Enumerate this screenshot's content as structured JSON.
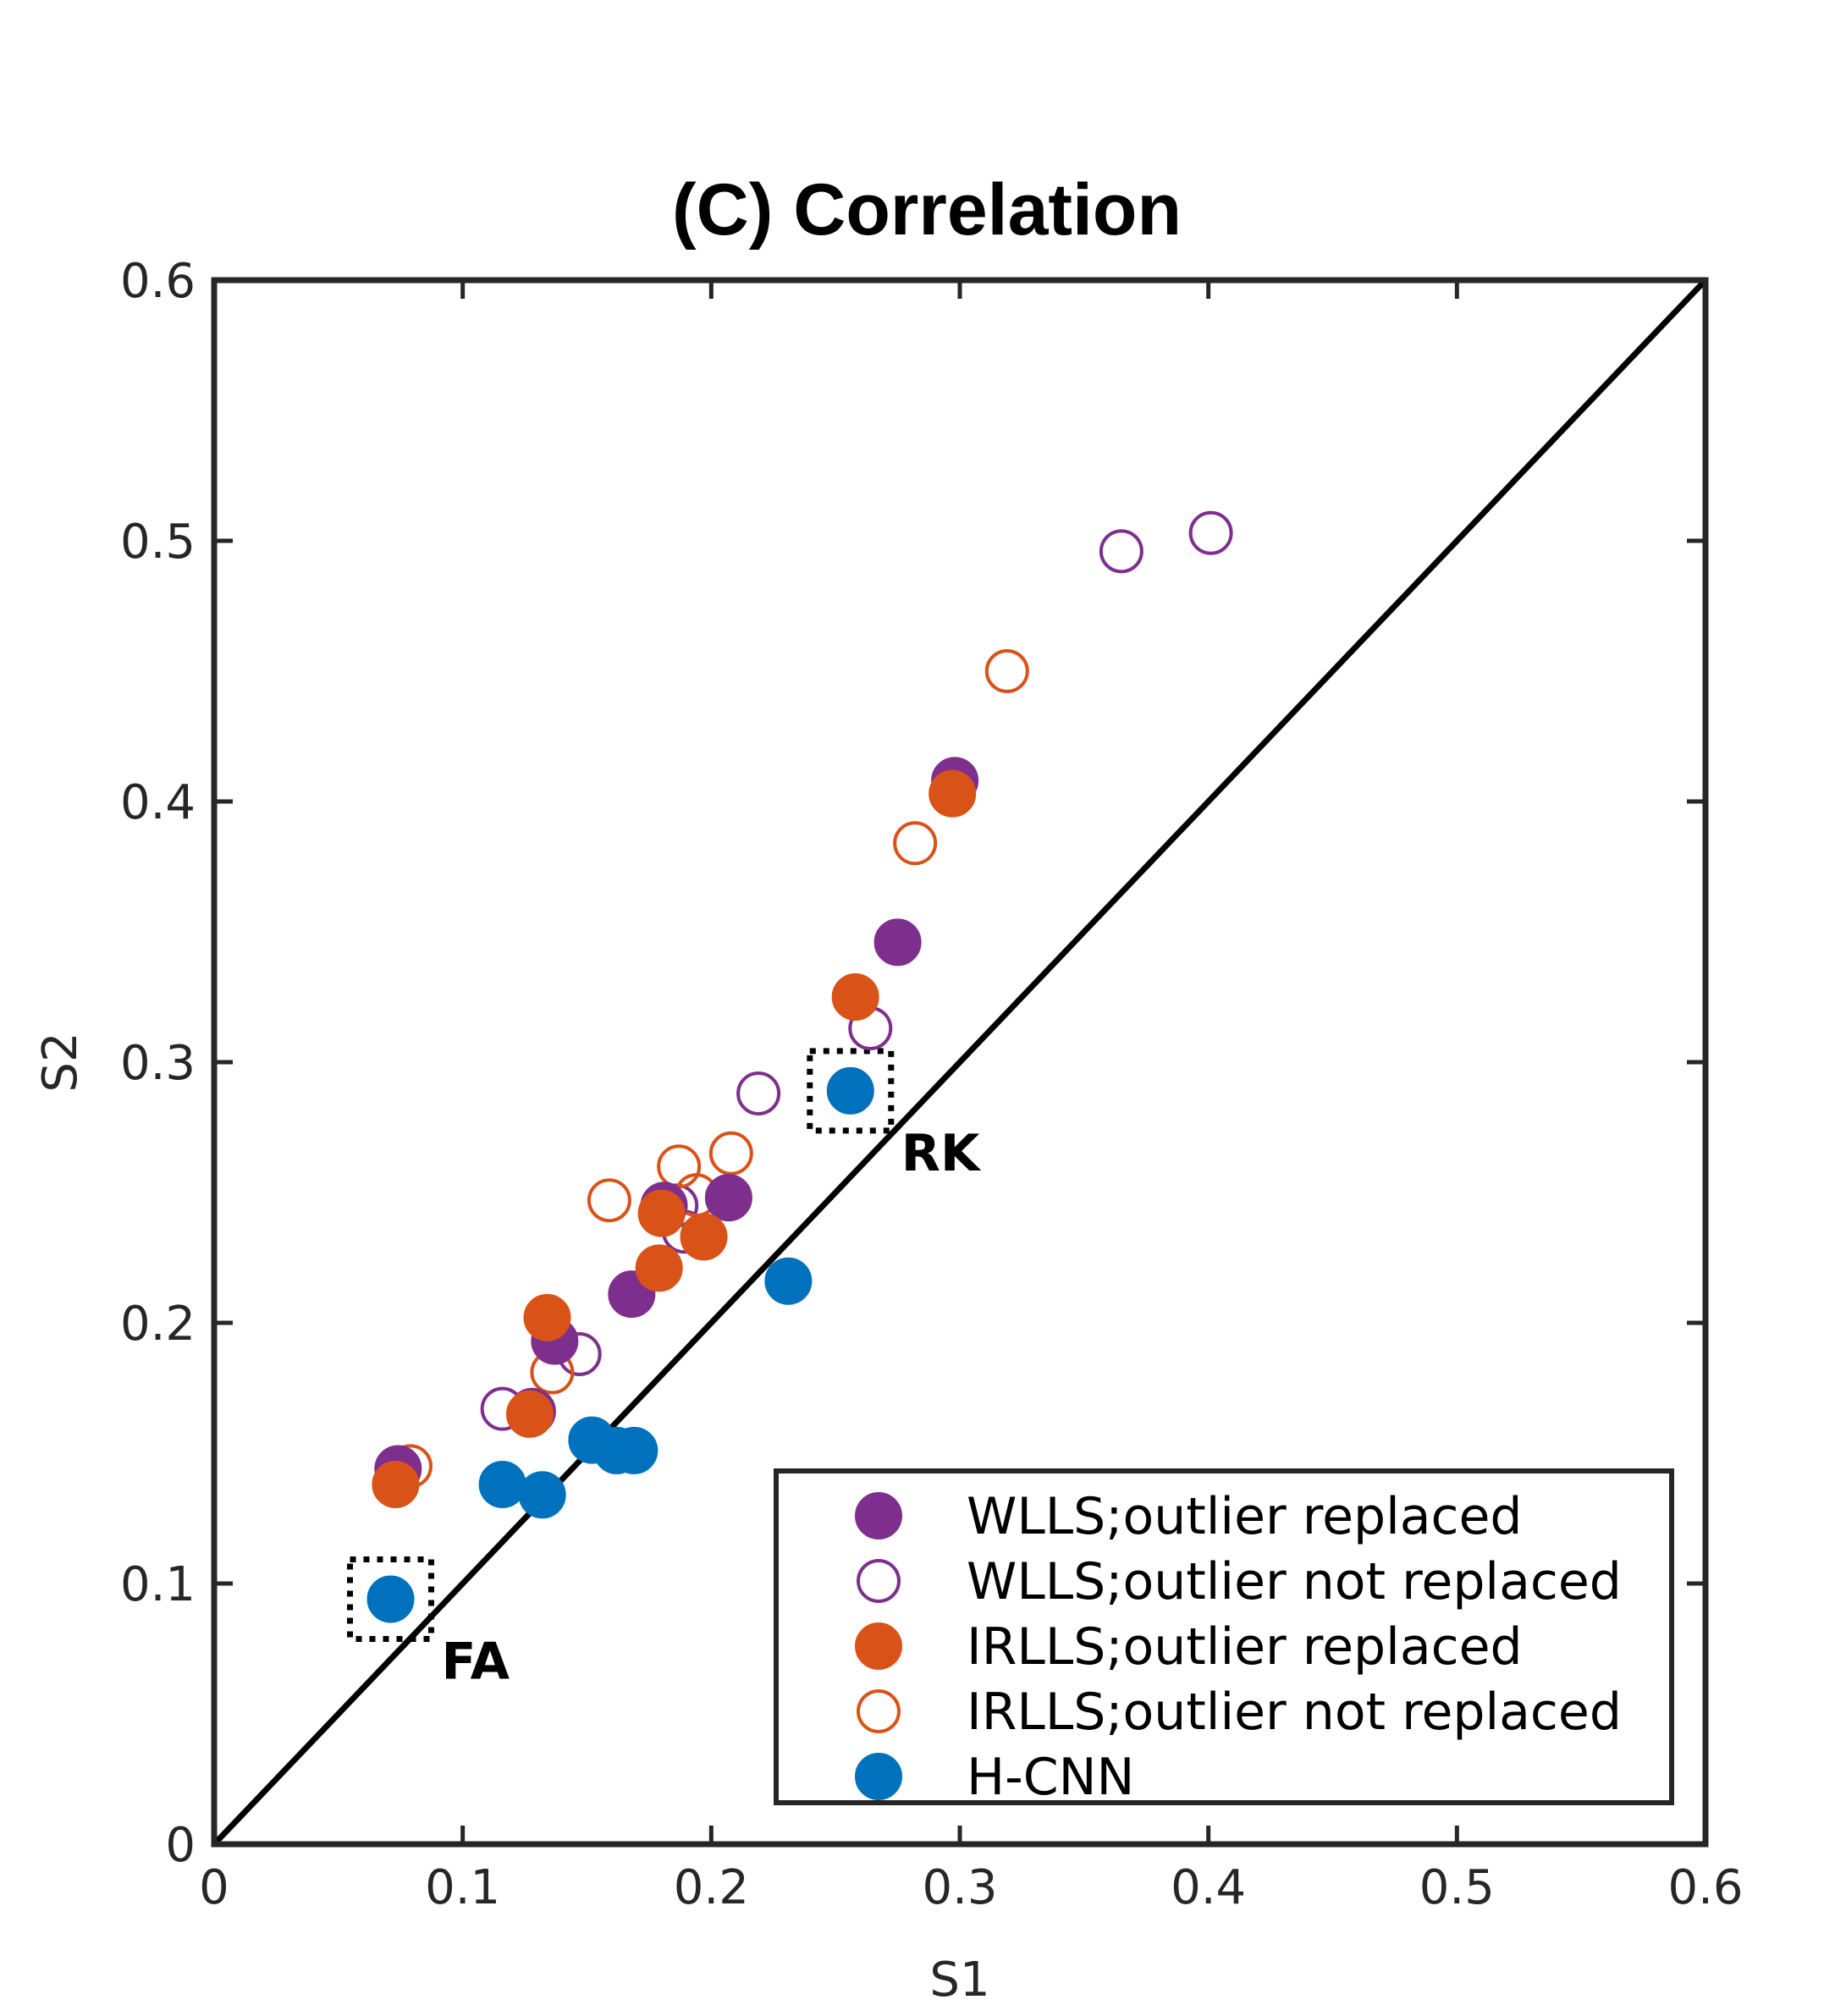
{
  "chart_data": {
    "type": "scatter",
    "title": "(C) Correlation",
    "xlabel": "S1",
    "ylabel": "S2",
    "xlim": [
      0,
      0.6
    ],
    "ylim": [
      0,
      0.6
    ],
    "xticks": [
      "0",
      "0.1",
      "0.2",
      "0.3",
      "0.4",
      "0.5",
      "0.6"
    ],
    "yticks": [
      "0",
      "0.1",
      "0.2",
      "0.3",
      "0.4",
      "0.5",
      "0.6"
    ],
    "reference_line": {
      "type": "identity",
      "from": [
        0,
        0
      ],
      "to": [
        0.6,
        0.6
      ],
      "color": "#000000"
    },
    "legend_position": "bottom-right",
    "grid": false,
    "series": [
      {
        "name": "WLLS;outlier replaced",
        "marker": "filled-circle",
        "color": "#7E2F8E",
        "points": [
          [
            0.074,
            0.144
          ],
          [
            0.128,
            0.166
          ],
          [
            0.137,
            0.193
          ],
          [
            0.168,
            0.211
          ],
          [
            0.181,
            0.245
          ],
          [
            0.207,
            0.248
          ],
          [
            0.275,
            0.346
          ],
          [
            0.298,
            0.408
          ]
        ]
      },
      {
        "name": "WLLS;outlier not replaced",
        "marker": "open-circle",
        "color": "#7E2F8E",
        "points": [
          [
            0.116,
            0.167
          ],
          [
            0.147,
            0.188
          ],
          [
            0.186,
            0.245
          ],
          [
            0.189,
            0.235
          ],
          [
            0.219,
            0.288
          ],
          [
            0.264,
            0.313
          ],
          [
            0.365,
            0.496
          ],
          [
            0.401,
            0.503
          ]
        ]
      },
      {
        "name": "IRLLS;outlier replaced",
        "marker": "filled-circle",
        "color": "#D95319",
        "points": [
          [
            0.073,
            0.138
          ],
          [
            0.127,
            0.165
          ],
          [
            0.134,
            0.202
          ],
          [
            0.179,
            0.221
          ],
          [
            0.18,
            0.242
          ],
          [
            0.197,
            0.233
          ],
          [
            0.258,
            0.325
          ],
          [
            0.297,
            0.403
          ]
        ]
      },
      {
        "name": "IRLLS;outlier not replaced",
        "marker": "open-circle",
        "color": "#D95319",
        "points": [
          [
            0.079,
            0.145
          ],
          [
            0.136,
            0.181
          ],
          [
            0.159,
            0.247
          ],
          [
            0.187,
            0.26
          ],
          [
            0.194,
            0.249
          ],
          [
            0.208,
            0.265
          ],
          [
            0.282,
            0.384
          ],
          [
            0.319,
            0.45
          ]
        ]
      },
      {
        "name": "H-CNN",
        "marker": "filled-circle",
        "color": "#0072BD",
        "points": [
          [
            0.071,
            0.094
          ],
          [
            0.116,
            0.138
          ],
          [
            0.132,
            0.134
          ],
          [
            0.152,
            0.155
          ],
          [
            0.162,
            0.151
          ],
          [
            0.169,
            0.151
          ],
          [
            0.231,
            0.216
          ],
          [
            0.256,
            0.289
          ]
        ]
      }
    ],
    "annotations": [
      {
        "text": "FA",
        "target": [
          0.071,
          0.094
        ],
        "marker": "dotted-box"
      },
      {
        "text": "RK",
        "target": [
          0.256,
          0.289
        ],
        "marker": "dotted-box"
      }
    ]
  }
}
